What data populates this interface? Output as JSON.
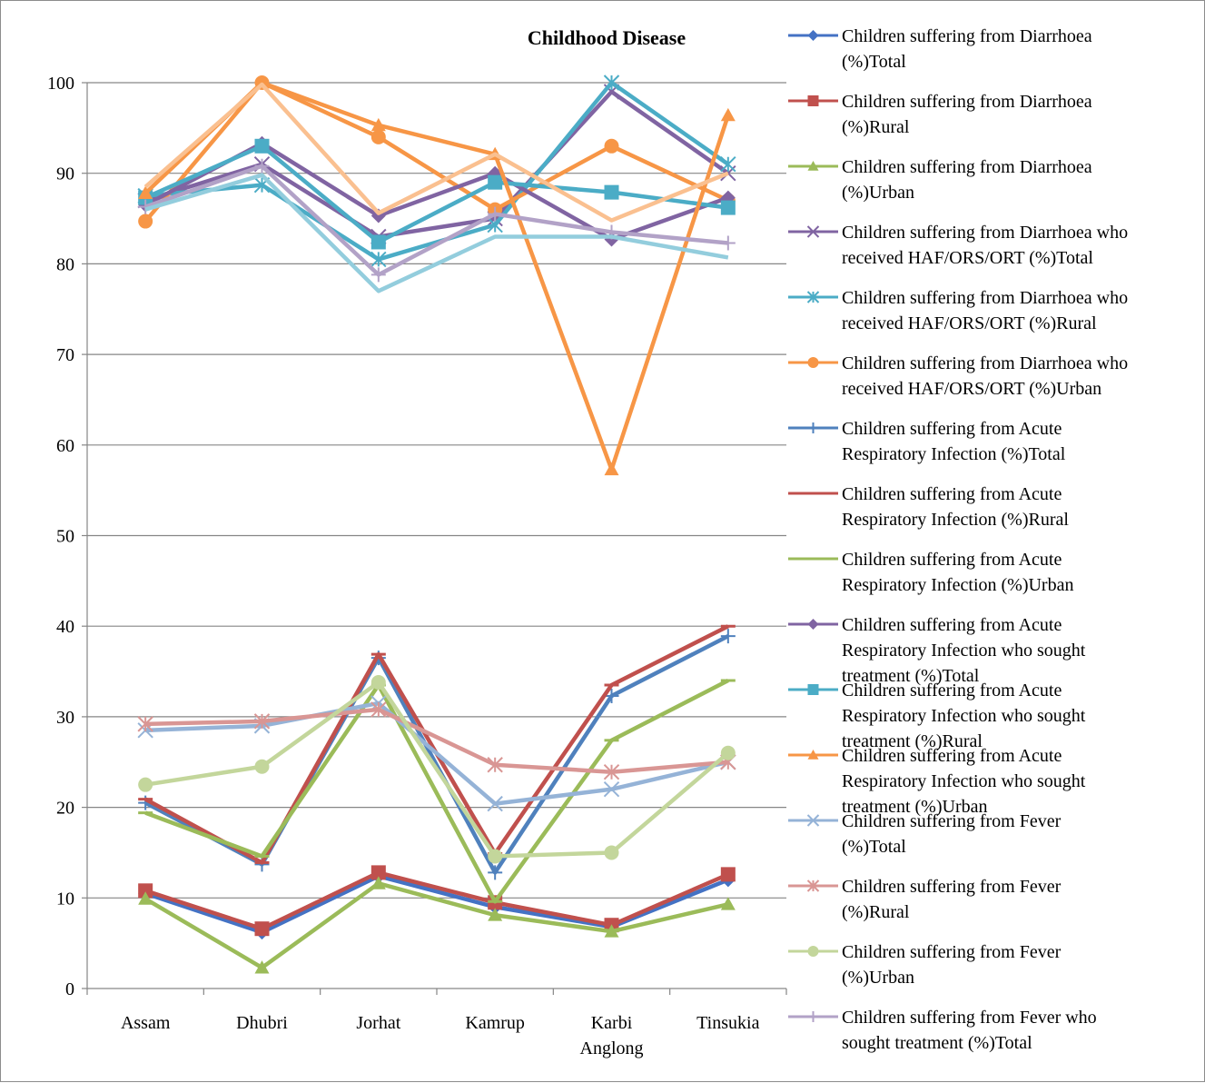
{
  "chart_data": {
    "type": "line",
    "title": "Childhood Disease",
    "xlabel": "",
    "ylabel": "",
    "ylim": [
      0,
      100
    ],
    "yticks": [
      "0",
      "10",
      "20",
      "30",
      "40",
      "50",
      "60",
      "70",
      "80",
      "90",
      "100"
    ],
    "grid": "horizontal",
    "legend_position": "right",
    "categories": [
      [
        "Assam"
      ],
      [
        "Dhubri"
      ],
      [
        "Jorhat"
      ],
      [
        "Kamrup"
      ],
      [
        "Karbi",
        "Anglong"
      ],
      [
        "Tinsukia"
      ]
    ],
    "series": [
      {
        "name": "Children suffering from Diarrhoea (%)Total",
        "legend_lines": [
          "Children suffering from Diarrhoea",
          "(%)Total"
        ],
        "color": "#4472C4",
        "marker": "diamond",
        "values": [
          10.5,
          6.2,
          12.4,
          9.0,
          6.8,
          12.0
        ]
      },
      {
        "name": "Children suffering from Diarrhoea (%)Rural",
        "legend_lines": [
          "Children suffering from Diarrhoea",
          "(%)Rural"
        ],
        "color": "#C0504D",
        "marker": "square",
        "values": [
          10.8,
          6.6,
          12.8,
          9.5,
          7.0,
          12.6
        ]
      },
      {
        "name": "Children suffering from Diarrhoea (%)Urban",
        "legend_lines": [
          "Children suffering from Diarrhoea",
          "(%)Urban"
        ],
        "color": "#9BBB59",
        "marker": "triangle",
        "values": [
          9.9,
          2.3,
          11.6,
          8.1,
          6.3,
          9.3
        ]
      },
      {
        "name": "Children suffering from Diarrhoea who received HAF/ORS/ORT (%)Total",
        "legend_lines": [
          "Children suffering from Diarrhoea who",
          "received HAF/ORS/ORT (%)Total"
        ],
        "color": "#8064A2",
        "marker": "x",
        "values": [
          87.0,
          91.0,
          83.0,
          85.0,
          99.0,
          90.0
        ]
      },
      {
        "name": "Children suffering from Diarrhoea who received HAF/ORS/ORT (%)Rural",
        "legend_lines": [
          "Children suffering from Diarrhoea who",
          "received HAF/ORS/ORT (%)Rural"
        ],
        "color": "#4BACC6",
        "marker": "star",
        "values": [
          87.5,
          88.7,
          80.5,
          84.3,
          100.0,
          91.0
        ]
      },
      {
        "name": "Children suffering from Diarrhoea who received HAF/ORS/ORT (%)Urban",
        "legend_lines": [
          "Children suffering from Diarrhoea who",
          "received HAF/ORS/ORT (%)Urban"
        ],
        "color": "#F79646",
        "marker": "circle",
        "values": [
          84.7,
          100.0,
          94.0,
          86.0,
          93.0,
          87.0
        ]
      },
      {
        "name": "Children suffering from Acute Respiratory Infection (%)Total",
        "legend_lines": [
          "Children suffering from Acute",
          "Respiratory Infection (%)Total"
        ],
        "color": "#4F81BD",
        "marker": "plus",
        "values": [
          20.5,
          13.7,
          36.5,
          12.8,
          32.3,
          38.9
        ]
      },
      {
        "name": "Children suffering from Acute Respiratory Infection (%)Rural",
        "legend_lines": [
          "Children suffering from Acute",
          "Respiratory Infection (%)Rural"
        ],
        "color": "#C0504D",
        "marker": "dash",
        "values": [
          20.9,
          13.9,
          36.9,
          14.9,
          33.5,
          40.0
        ]
      },
      {
        "name": "Children suffering from Acute Respiratory Infection (%)Urban",
        "legend_lines": [
          "Children suffering from Acute",
          "Respiratory Infection (%)Urban"
        ],
        "color": "#9BBB59",
        "marker": "dash",
        "values": [
          19.4,
          14.6,
          33.5,
          9.6,
          27.4,
          34.0
        ]
      },
      {
        "name": "Children suffering from Acute Respiratory Infection who sought treatment (%)Total",
        "legend_lines": [
          "Children suffering from Acute",
          "Respiratory Infection who sought",
          "treatment (%)Total"
        ],
        "color": "#8064A2",
        "marker": "diamond",
        "values": [
          86.5,
          93.3,
          85.3,
          90.0,
          82.7,
          87.3
        ]
      },
      {
        "name": "Children suffering from Acute Respiratory Infection who sought treatment (%)Rural",
        "legend_lines": [
          "Children suffering from Acute",
          "Respiratory Infection who sought",
          "treatment (%)Rural"
        ],
        "color": "#4BACC6",
        "marker": "square",
        "values": [
          87.3,
          93.0,
          82.4,
          89.0,
          87.9,
          86.2
        ]
      },
      {
        "name": "Children suffering from Acute Respiratory Infection who sought treatment (%)Urban",
        "legend_lines": [
          "Children suffering from Acute",
          "Respiratory Infection who sought",
          "treatment (%)Urban"
        ],
        "color": "#F79646",
        "marker": "triangle",
        "values": [
          87.8,
          100.0,
          95.3,
          92.1,
          57.3,
          96.4
        ]
      },
      {
        "name": "Children suffering from Fever (%)Total",
        "legend_lines": [
          "Children suffering from Fever",
          "(%)Total"
        ],
        "color": "#95B3D7",
        "marker": "x",
        "values": [
          28.5,
          29.0,
          31.5,
          20.4,
          22.0,
          25.0
        ]
      },
      {
        "name": "Children suffering from Fever (%)Rural",
        "legend_lines": [
          "Children suffering from Fever",
          "(%)Rural"
        ],
        "color": "#D99694",
        "marker": "star",
        "values": [
          29.2,
          29.5,
          30.8,
          24.7,
          23.9,
          25.0
        ]
      },
      {
        "name": "Children suffering from Fever (%)Urban",
        "legend_lines": [
          "Children suffering from Fever",
          "(%)Urban"
        ],
        "color": "#C3D69B",
        "marker": "circle",
        "values": [
          22.5,
          24.5,
          33.8,
          14.6,
          15.0,
          26.0
        ]
      },
      {
        "name": "Children suffering from Fever who sought treatment (%)Total",
        "legend_lines": [
          "Children suffering from Fever who",
          "sought treatment (%)Total"
        ],
        "color": "#B2A2C7",
        "marker": "plus",
        "values": [
          86.3,
          90.8,
          78.8,
          85.5,
          83.5,
          82.3
        ]
      },
      {
        "name": "",
        "legend_lines": [],
        "color": "#FAC090",
        "marker": "none",
        "values": [
          88.5,
          99.8,
          85.6,
          92.1,
          84.8,
          90.0
        ]
      },
      {
        "name": "",
        "legend_lines": [],
        "color": "#93CDDD",
        "marker": "none",
        "values": [
          86.0,
          89.8,
          77.0,
          83.0,
          83.0,
          80.7
        ]
      }
    ]
  }
}
